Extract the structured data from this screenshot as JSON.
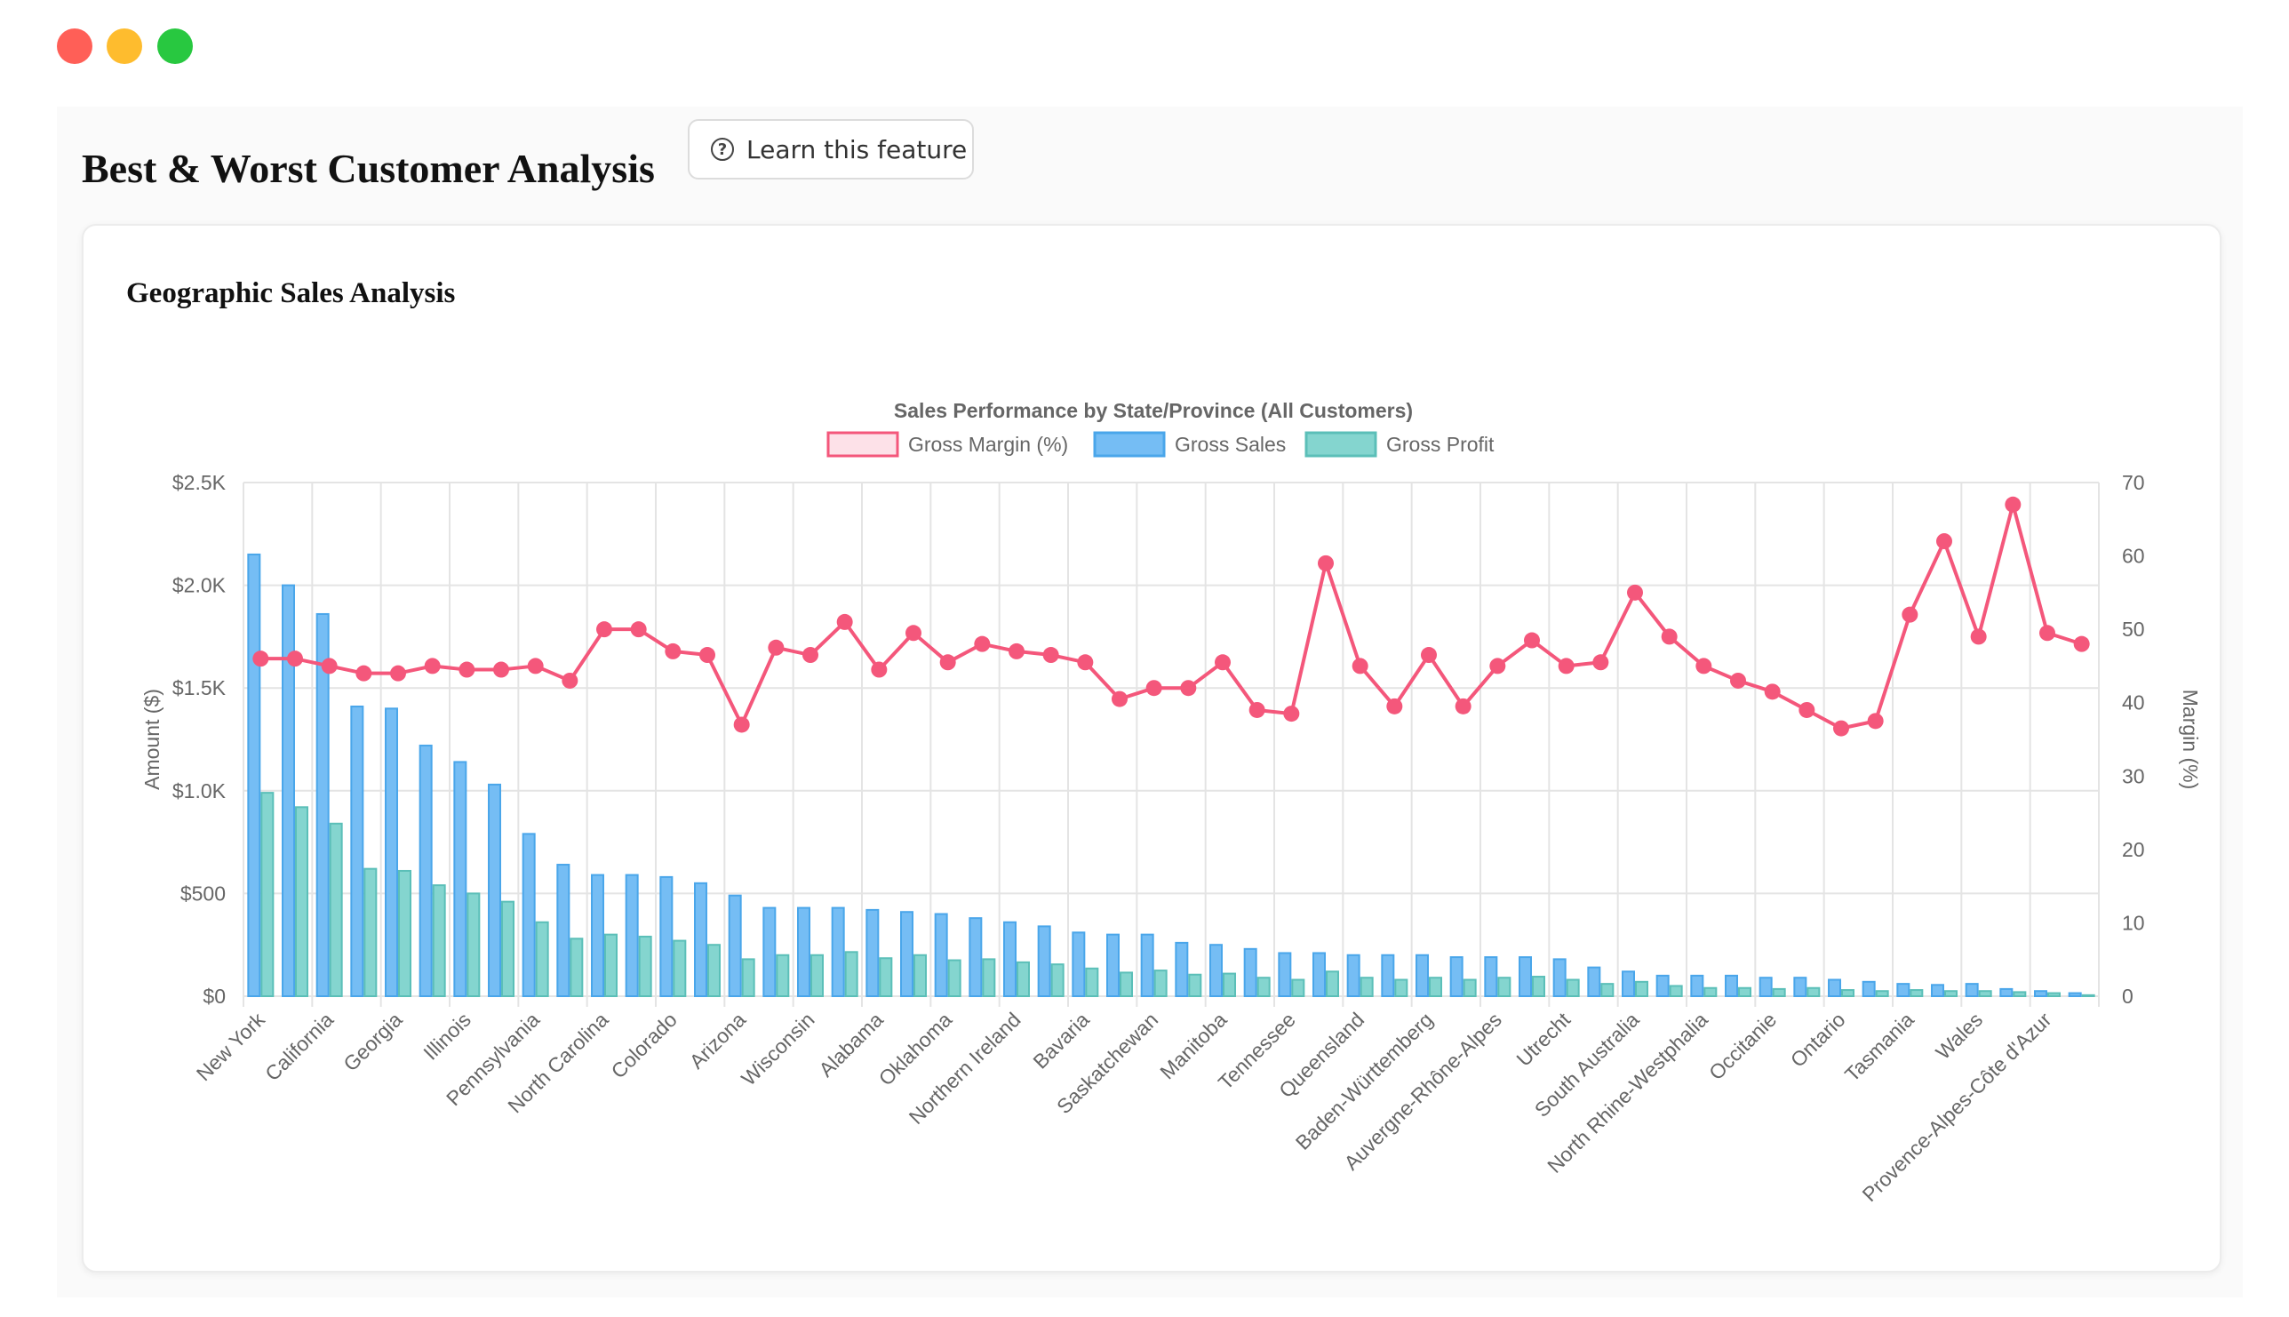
{
  "window": {
    "controls": [
      "close",
      "minimize",
      "zoom"
    ]
  },
  "page": {
    "title": "Best & Worst Customer Analysis",
    "learn_button": {
      "label": "Learn this feature",
      "icon": "question-circle-icon"
    }
  },
  "card": {
    "title": "Geographic Sales Analysis"
  },
  "colors": {
    "sales": "#75bdf4",
    "sales_border": "#4aa6ea",
    "profit": "#84d5cf",
    "profit_border": "#5bbfb8",
    "margin": "#f4577b",
    "margin_fill": "#fde1e8",
    "grid": "#e4e4e4",
    "text": "#666666"
  },
  "chart_data": {
    "type": "bar",
    "title": "Sales Performance by State/Province (All Customers)",
    "legend": [
      "Gross Margin (%)",
      "Gross Sales",
      "Gross Profit"
    ],
    "legend_position": "top",
    "grid": true,
    "ylabel": "Amount ($)",
    "y2label": "Margin (%)",
    "ylim": [
      0,
      2500
    ],
    "y2lim": [
      0,
      70
    ],
    "y_ticks": [
      "$0",
      "$500",
      "$1.0K",
      "$1.5K",
      "$2.0K",
      "$2.5K"
    ],
    "y2_ticks": [
      "0",
      "10",
      "20",
      "30",
      "40",
      "50",
      "60",
      "70"
    ],
    "x_tick_labels": [
      "New York",
      "California",
      "Georgia",
      "Illinois",
      "Pennsylvania",
      "North Carolina",
      "Colorado",
      "Arizona",
      "Wisconsin",
      "Alabama",
      "Oklahoma",
      "Northern Ireland",
      "Bavaria",
      "Saskatchewan",
      "Manitoba",
      "Tennessee",
      "Queensland",
      "Baden-Württemberg",
      "Auvergne-Rhône-Alpes",
      "Utrecht",
      "South Australia",
      "North Rhine-Westphalia",
      "Occitanie",
      "Ontario",
      "Tasmania",
      "Wales",
      "Provence-Alpes-Côte d'Azur"
    ],
    "series": [
      {
        "name": "Gross Sales",
        "type": "bar",
        "axis": "left",
        "values": [
          2150,
          2000,
          1860,
          1410,
          1400,
          1220,
          1140,
          1030,
          790,
          640,
          590,
          590,
          580,
          550,
          490,
          430,
          430,
          430,
          420,
          410,
          400,
          380,
          360,
          340,
          310,
          300,
          300,
          260,
          250,
          230,
          210,
          210,
          200,
          200,
          200,
          190,
          190,
          190,
          180,
          140,
          120,
          100,
          100,
          100,
          90,
          90,
          80,
          70,
          60,
          55,
          60,
          35,
          25,
          15
        ]
      },
      {
        "name": "Gross Profit",
        "type": "bar",
        "axis": "left",
        "values": [
          990,
          920,
          840,
          620,
          610,
          540,
          500,
          460,
          360,
          280,
          300,
          290,
          270,
          250,
          180,
          200,
          200,
          215,
          185,
          200,
          175,
          180,
          165,
          155,
          135,
          115,
          125,
          105,
          110,
          90,
          80,
          120,
          90,
          80,
          90,
          80,
          90,
          95,
          80,
          60,
          70,
          50,
          40,
          40,
          35,
          40,
          30,
          25,
          30,
          25,
          25,
          20,
          15,
          5
        ]
      },
      {
        "name": "Gross Margin (%)",
        "type": "line",
        "axis": "right",
        "values": [
          46,
          46,
          45,
          44,
          44,
          45,
          44.5,
          44.5,
          45,
          43,
          50,
          50,
          47,
          46.5,
          37,
          47.5,
          46.5,
          51,
          44.5,
          49.5,
          45.5,
          48,
          47,
          46.5,
          45.5,
          40.5,
          42,
          42,
          45.5,
          39,
          38.5,
          59,
          45,
          39.5,
          46.5,
          39.5,
          45,
          48.5,
          45,
          45.5,
          55,
          49,
          45,
          43,
          41.5,
          39,
          36.5,
          37.5,
          52,
          62,
          49,
          67,
          49.5,
          48
        ]
      }
    ]
  }
}
